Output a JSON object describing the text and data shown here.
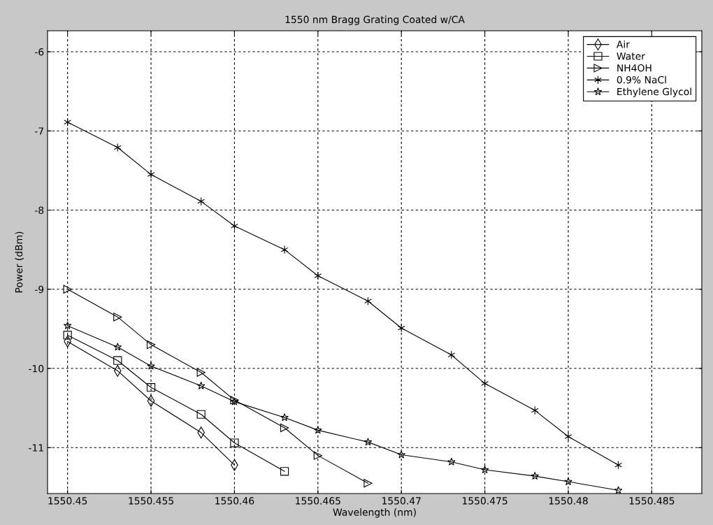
{
  "chart_data": {
    "type": "line",
    "title": "1550 nm Bragg Grating Coated w/CA",
    "xlabel": "Wavelength (nm)",
    "ylabel": "Power (dBm)",
    "xlim": [
      1550.4488,
      1550.488
    ],
    "ylim": [
      -11.58,
      -5.735
    ],
    "xticks": [
      {
        "value": 1550.45,
        "label": "1550.45"
      },
      {
        "value": 1550.455,
        "label": "1550.455"
      },
      {
        "value": 1550.46,
        "label": "1550.46"
      },
      {
        "value": 1550.465,
        "label": "1550.465"
      },
      {
        "value": 1550.47,
        "label": "1550.47"
      },
      {
        "value": 1550.475,
        "label": "1550.475"
      },
      {
        "value": 1550.48,
        "label": "1550.48"
      },
      {
        "value": 1550.485,
        "label": "1550.485"
      }
    ],
    "yticks": [
      -11,
      -10,
      -9,
      -8,
      -7,
      -6
    ],
    "grid": true,
    "legend": "top right",
    "line_style": "solid",
    "series": [
      {
        "name": "Air",
        "color": "#000000",
        "marker": "diamond",
        "x": [
          1550.45,
          1550.453,
          1550.455,
          1550.458,
          1550.46
        ],
        "values": [
          -9.66,
          -10.03,
          -10.41,
          -10.81,
          -11.22
        ]
      },
      {
        "name": "Water",
        "color": "#000000",
        "marker": "square",
        "x": [
          1550.45,
          1550.453,
          1550.455,
          1550.458,
          1550.46,
          1550.463
        ],
        "values": [
          -9.58,
          -9.9,
          -10.24,
          -10.58,
          -10.94,
          -11.3
        ]
      },
      {
        "name": "NH4OH",
        "color": "#000000",
        "marker": "triangle",
        "x": [
          1550.45,
          1550.453,
          1550.455,
          1550.458,
          1550.46,
          1550.463,
          1550.465,
          1550.468
        ],
        "values": [
          -9.0,
          -9.35,
          -9.7,
          -10.05,
          -10.4,
          -10.75,
          -11.1,
          -11.45
        ]
      },
      {
        "name": "0.9% NaCl",
        "color": "#000000",
        "marker": "cross",
        "x": [
          1550.45,
          1550.453,
          1550.455,
          1550.458,
          1550.46,
          1550.463,
          1550.465,
          1550.468,
          1550.47,
          1550.473,
          1550.475,
          1550.478,
          1550.48,
          1550.483
        ],
        "values": [
          -6.89,
          -7.21,
          -7.55,
          -7.89,
          -8.2,
          -8.5,
          -8.83,
          -9.15,
          -9.49,
          -9.83,
          -10.19,
          -10.53,
          -10.86,
          -11.22
        ]
      },
      {
        "name": "Ethylene Glycol",
        "color": "#000000",
        "marker": "star",
        "x": [
          1550.45,
          1550.453,
          1550.455,
          1550.458,
          1550.46,
          1550.463,
          1550.465,
          1550.468,
          1550.47,
          1550.473,
          1550.475,
          1550.478,
          1550.48,
          1550.483
        ],
        "values": [
          -9.46,
          -9.73,
          -9.97,
          -10.22,
          -10.42,
          -10.62,
          -10.78,
          -10.93,
          -11.09,
          -11.18,
          -11.28,
          -11.36,
          -11.43,
          -11.54
        ]
      }
    ]
  }
}
